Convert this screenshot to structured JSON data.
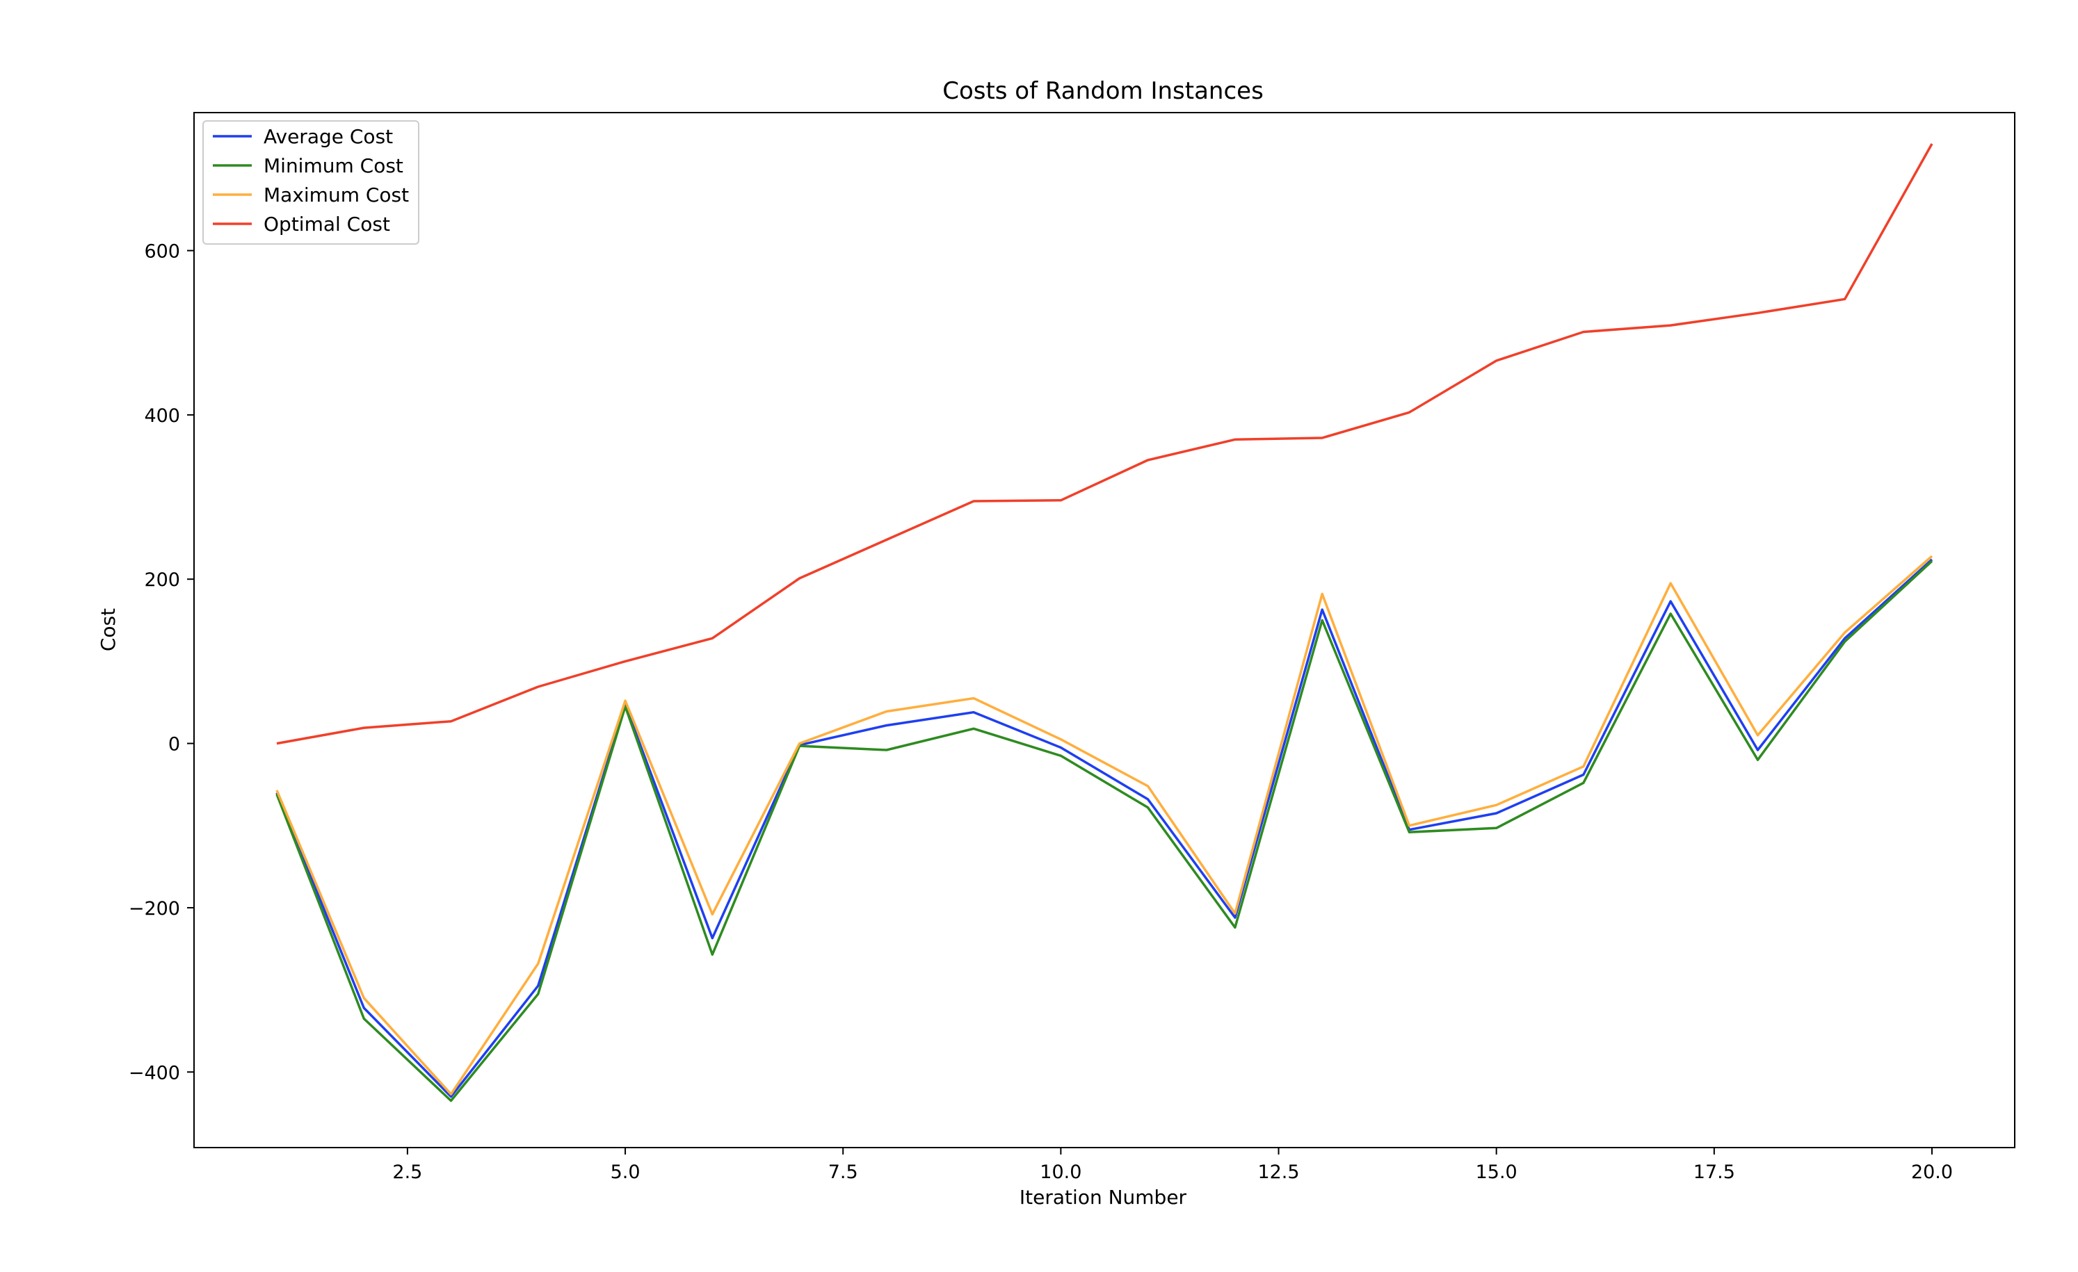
{
  "chart_data": {
    "type": "line",
    "title": "Costs of Random Instances",
    "xlabel": "Iteration Number",
    "ylabel": "Cost",
    "x": [
      1,
      2,
      3,
      4,
      5,
      6,
      7,
      8,
      9,
      10,
      11,
      12,
      13,
      14,
      15,
      16,
      17,
      18,
      19,
      20
    ],
    "xlim": [
      0.05,
      20.95
    ],
    "ylim": [
      -492,
      768
    ],
    "xticks": [
      2.5,
      5.0,
      7.5,
      10.0,
      12.5,
      15.0,
      17.5,
      20.0
    ],
    "xtick_labels": [
      "2.5",
      "5.0",
      "7.5",
      "10.0",
      "12.5",
      "15.0",
      "17.5",
      "20.0"
    ],
    "yticks": [
      -400,
      -200,
      0,
      200,
      400,
      600
    ],
    "ytick_labels": [
      "−400",
      "−200",
      "0",
      "200",
      "400",
      "600"
    ],
    "grid": false,
    "legend_position": "top-left",
    "series": [
      {
        "name": "Average Cost",
        "color": "#1f3ff0",
        "values": [
          -60,
          -322,
          -430,
          -295,
          47,
          -237,
          -2,
          22,
          38,
          -5,
          -68,
          -212,
          163,
          -105,
          -85,
          -38,
          173,
          -8,
          128,
          224
        ]
      },
      {
        "name": "Minimum Cost",
        "color": "#2e8b20",
        "values": [
          -62,
          -335,
          -435,
          -305,
          45,
          -257,
          -3,
          -8,
          18,
          -15,
          -78,
          -224,
          150,
          -108,
          -103,
          -48,
          158,
          -20,
          124,
          222
        ]
      },
      {
        "name": "Maximum Cost",
        "color": "#ffae3d",
        "values": [
          -57,
          -310,
          -427,
          -268,
          52,
          -208,
          0,
          39,
          55,
          5,
          -52,
          -207,
          182,
          -100,
          -75,
          -28,
          195,
          10,
          135,
          228
        ]
      },
      {
        "name": "Optimal Cost",
        "color": "#f0402a",
        "values": [
          0,
          19,
          27,
          69,
          100,
          128,
          201,
          248,
          295,
          296,
          345,
          370,
          372,
          403,
          466,
          501,
          509,
          524,
          541,
          730
        ]
      }
    ]
  }
}
